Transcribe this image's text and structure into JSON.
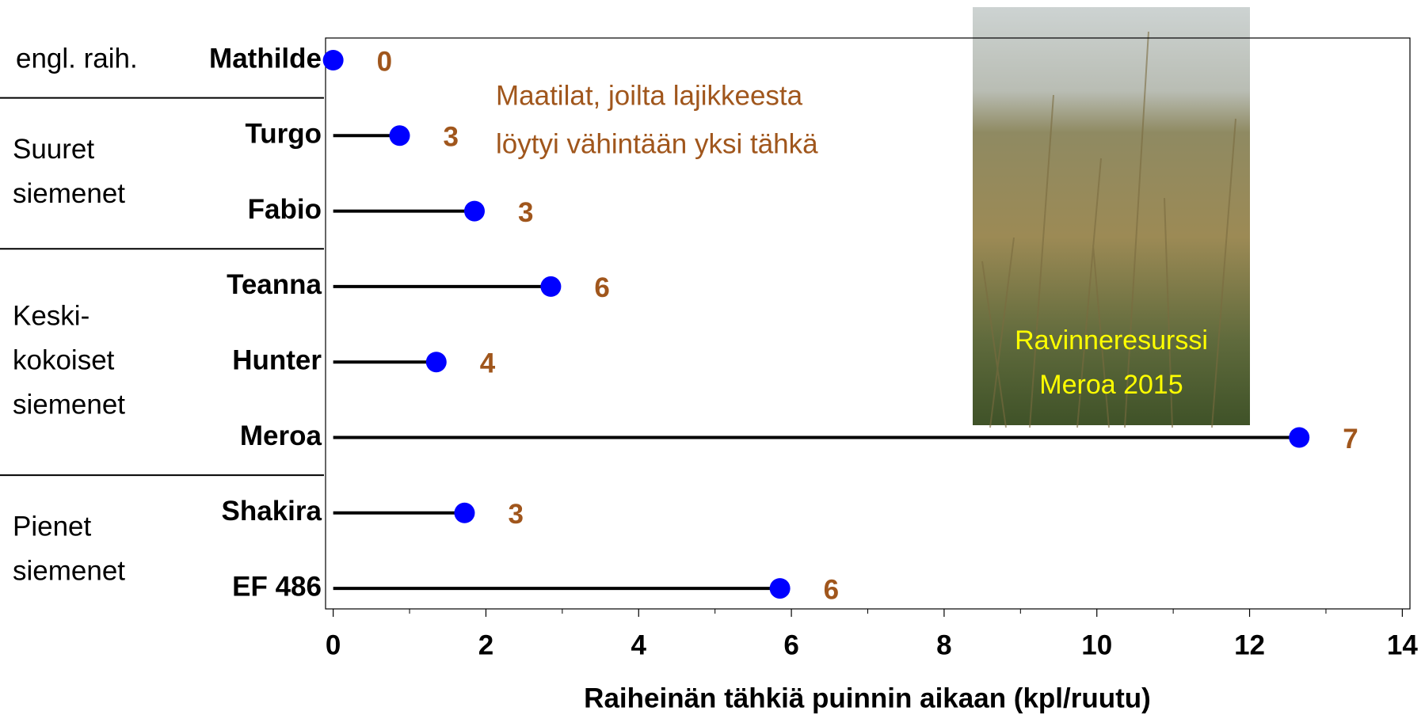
{
  "chart_data": {
    "type": "lollipop",
    "x_label": "Raiheinän tähkiä puinnin aikaan (kpl/ruutu)",
    "categories": [
      "Mathilde",
      "Turgo",
      "Fabio",
      "Teanna",
      "Hunter",
      "Meroa",
      "Shakira",
      "EF 486"
    ],
    "values": [
      0,
      0.87,
      1.85,
      2.85,
      1.35,
      12.65,
      1.72,
      5.85
    ],
    "color": "#0000ff",
    "stem_color": "#000000",
    "farm_counts": [
      0,
      3,
      3,
      6,
      4,
      7,
      3,
      6
    ],
    "farm_counts_label": [
      "Maatilat, joilta lajikkeesta",
      "löytyi vähintään yksi tähkä"
    ],
    "groups": [
      [
        "engl. raih."
      ],
      [
        "Suuret",
        "siemenet"
      ],
      [
        "Keski-",
        "kokoiset",
        "siemenet"
      ],
      [
        "Pienet",
        "siemenet"
      ]
    ],
    "photo_caption": [
      "Ravinneresurssi",
      "Meroa 2015"
    ],
    "xlim": [
      -0.1,
      14.1
    ],
    "xticks": [
      0,
      2,
      4,
      6,
      8,
      10,
      12,
      14
    ],
    "minor_xticks": [
      1,
      3,
      5,
      7,
      9,
      11,
      13
    ]
  }
}
